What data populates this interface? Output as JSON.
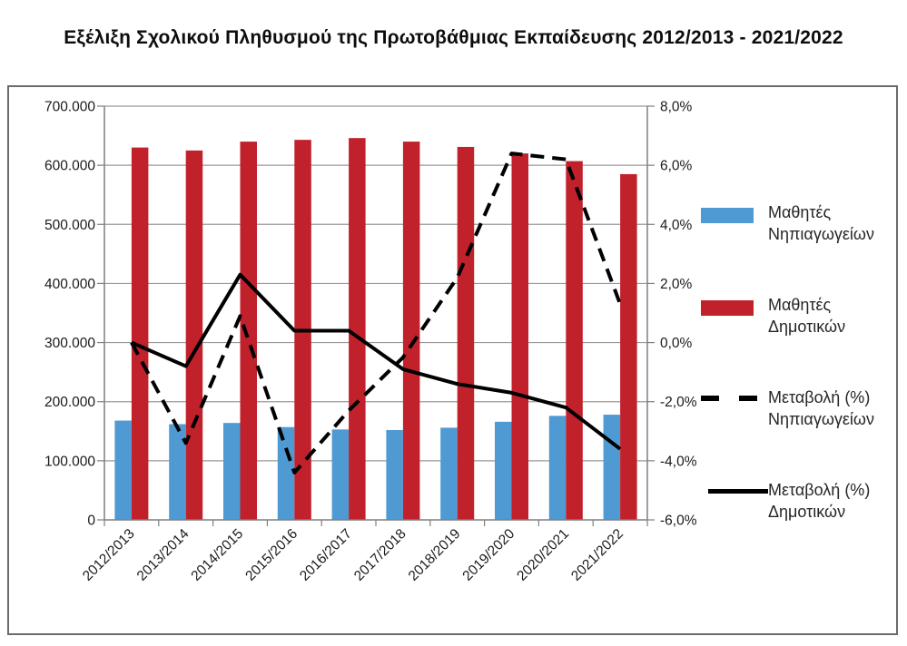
{
  "chart_data": {
    "type": "combo-bar-line",
    "title": "Εξέλιξη Σχολικού Πληθυσμού της Πρωτοβάθμιας Εκπαίδευσης 2012/2013 - 2021/2022",
    "categories": [
      "2012/2013",
      "2013/2014",
      "2014/2015",
      "2015/2016",
      "2016/2017",
      "2017/2018",
      "2018/2019",
      "2019/2020",
      "2020/2021",
      "2021/2022"
    ],
    "series": [
      {
        "name": "Μαθητές Νηπιαγωγείων",
        "type": "bar",
        "axis": "left",
        "color": "#4f9ad3",
        "values": [
          168000,
          162000,
          164000,
          157000,
          153000,
          152000,
          156000,
          166000,
          176000,
          178000
        ]
      },
      {
        "name": "Μαθητές Δημοτικών",
        "type": "bar",
        "axis": "left",
        "color": "#c0212b",
        "values": [
          630000,
          625000,
          640000,
          643000,
          646000,
          640000,
          631000,
          620000,
          607000,
          585000
        ]
      },
      {
        "name": "Μεταβολή (%) Νηπιαγωγείων",
        "type": "line",
        "line_style": "dashed",
        "axis": "right",
        "color": "#000000",
        "values": [
          0.0,
          -3.4,
          0.9,
          -4.4,
          -2.3,
          -0.5,
          2.2,
          6.4,
          6.2,
          1.3
        ]
      },
      {
        "name": "Μεταβολή (%) Δημοτικών",
        "type": "line",
        "line_style": "solid",
        "axis": "right",
        "color": "#000000",
        "values": [
          0.0,
          -0.8,
          2.3,
          0.4,
          0.4,
          -0.9,
          -1.4,
          -1.7,
          -2.2,
          -3.6
        ]
      }
    ],
    "axes": {
      "left": {
        "min": 0,
        "max": 700000,
        "step": 100000,
        "tick_labels": [
          "700.000",
          "600.000",
          "500.000",
          "400.000",
          "300.000",
          "200.000",
          "100.000",
          "0"
        ]
      },
      "right": {
        "min": -6,
        "max": 8,
        "step": 2,
        "tick_labels": [
          "8,0%",
          "6,0%",
          "4,0%",
          "2,0%",
          "0,0%",
          "-2,0%",
          "-4,0%",
          "-6,0%"
        ]
      }
    },
    "grid": "horizontal",
    "legend": {
      "position": "right",
      "items": [
        {
          "line1": "Μαθητές",
          "line2": "Νηπιαγωγείων",
          "marker": "bar-blue"
        },
        {
          "line1": "Μαθητές",
          "line2": "Δημοτικών",
          "marker": "bar-red"
        },
        {
          "line1": "Μεταβολή (%)",
          "line2": "Νηπιαγωγείων",
          "marker": "dashed-line"
        },
        {
          "line1": "Μεταβολή (%)",
          "line2": "Δημοτικών",
          "marker": "solid-line"
        }
      ]
    },
    "colors": {
      "grid": "#999999",
      "axis": "#7f7f7f",
      "tick_text": "#1a1a1a",
      "box_border": "#6b6b6b",
      "title_text": "#0d0d0d"
    }
  }
}
